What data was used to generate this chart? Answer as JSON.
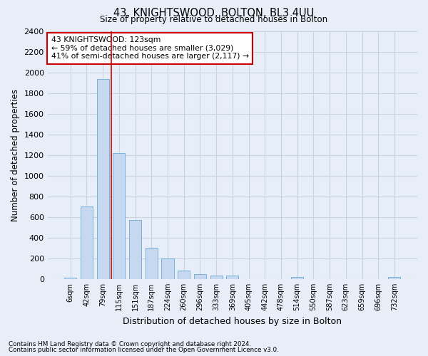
{
  "title": "43, KNIGHTSWOOD, BOLTON, BL3 4UU",
  "subtitle": "Size of property relative to detached houses in Bolton",
  "xlabel": "Distribution of detached houses by size in Bolton",
  "ylabel": "Number of detached properties",
  "footer_line1": "Contains HM Land Registry data © Crown copyright and database right 2024.",
  "footer_line2": "Contains public sector information licensed under the Open Government Licence v3.0.",
  "bar_labels": [
    "6sqm",
    "42sqm",
    "79sqm",
    "115sqm",
    "151sqm",
    "187sqm",
    "224sqm",
    "260sqm",
    "296sqm",
    "333sqm",
    "369sqm",
    "405sqm",
    "442sqm",
    "478sqm",
    "514sqm",
    "550sqm",
    "587sqm",
    "623sqm",
    "659sqm",
    "696sqm",
    "732sqm"
  ],
  "bar_values": [
    15,
    700,
    1940,
    1220,
    570,
    305,
    200,
    80,
    45,
    35,
    35,
    0,
    0,
    0,
    22,
    0,
    0,
    0,
    0,
    0,
    20
  ],
  "bar_color": "#c5d8ef",
  "bar_edge_color": "#6aaad4",
  "grid_color": "#c8d4e4",
  "background_color": "#e8eef8",
  "ylim": [
    0,
    2400
  ],
  "yticks": [
    0,
    200,
    400,
    600,
    800,
    1000,
    1200,
    1400,
    1600,
    1800,
    2000,
    2200,
    2400
  ],
  "redline_x": 3,
  "annotation_title": "43 KNIGHTSWOOD: 123sqm",
  "annotation_line2": "← 59% of detached houses are smaller (3,029)",
  "annotation_line3": "41% of semi-detached houses are larger (2,117) →",
  "annotation_box_color": "#ffffff",
  "annotation_box_edge": "#cc0000",
  "redline_color": "#cc0000",
  "bar_width": 0.75
}
